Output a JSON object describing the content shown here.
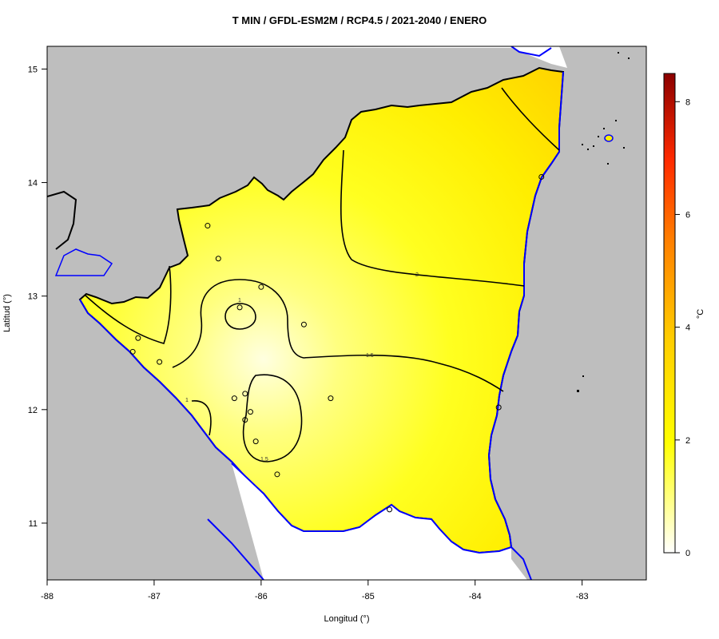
{
  "title": "T MIN / GFDL-ESM2M / RCP4.5 / 2021-2040 / ENERO",
  "x_axis": {
    "label": "Longitud (°)",
    "ticks": [
      "-88",
      "-87",
      "-86",
      "-85",
      "-84",
      "-83"
    ]
  },
  "y_axis": {
    "label": "Latitud (°)",
    "ticks": [
      "15",
      "14",
      "13",
      "12",
      "11"
    ]
  },
  "colorbar": {
    "label": "°C",
    "ticks": [
      "0",
      "2",
      "4",
      "6",
      "8"
    ],
    "colors": [
      "#ffffff",
      "#ffff00",
      "#ffd700",
      "#ff8c00",
      "#ff2a00",
      "#8b0000"
    ]
  },
  "contour_labels": [
    "1",
    "1",
    "1.5",
    "1.5",
    "2"
  ],
  "colors": {
    "land_gray": "#bebebe",
    "coast_blue": "#0000ff",
    "border_black": "#000000",
    "field_light": "#ffff88",
    "field_mid": "#ffff00",
    "field_dark": "#ffd800"
  },
  "chart_data": {
    "type": "heatmap",
    "title": "T MIN / GFDL-ESM2M / RCP4.5 / 2021-2040 / ENERO",
    "xlabel": "Longitud (°)",
    "ylabel": "Latitud (°)",
    "xlim": [
      -88,
      -82.4
    ],
    "ylim": [
      10.5,
      15.2
    ],
    "colorbar_range": [
      0,
      8.5
    ],
    "colorbar_unit": "°C",
    "contour_levels": [
      1,
      1.5,
      2
    ],
    "stations": [
      {
        "lon": -86.5,
        "lat": 13.62
      },
      {
        "lon": -86.4,
        "lat": 13.33
      },
      {
        "lon": -86.0,
        "lat": 13.08
      },
      {
        "lon": -86.2,
        "lat": 12.9
      },
      {
        "lon": -85.6,
        "lat": 12.75
      },
      {
        "lon": -87.15,
        "lat": 12.63
      },
      {
        "lon": -87.2,
        "lat": 12.51
      },
      {
        "lon": -86.95,
        "lat": 12.42
      },
      {
        "lon": -86.25,
        "lat": 12.1
      },
      {
        "lon": -86.15,
        "lat": 12.14
      },
      {
        "lon": -86.1,
        "lat": 11.98
      },
      {
        "lon": -86.15,
        "lat": 11.91
      },
      {
        "lon": -86.05,
        "lat": 11.72
      },
      {
        "lon": -85.85,
        "lat": 11.43
      },
      {
        "lon": -85.35,
        "lat": 12.1
      },
      {
        "lon": -84.8,
        "lat": 11.12
      },
      {
        "lon": -83.78,
        "lat": 12.02
      },
      {
        "lon": -83.38,
        "lat": 14.05
      }
    ]
  }
}
